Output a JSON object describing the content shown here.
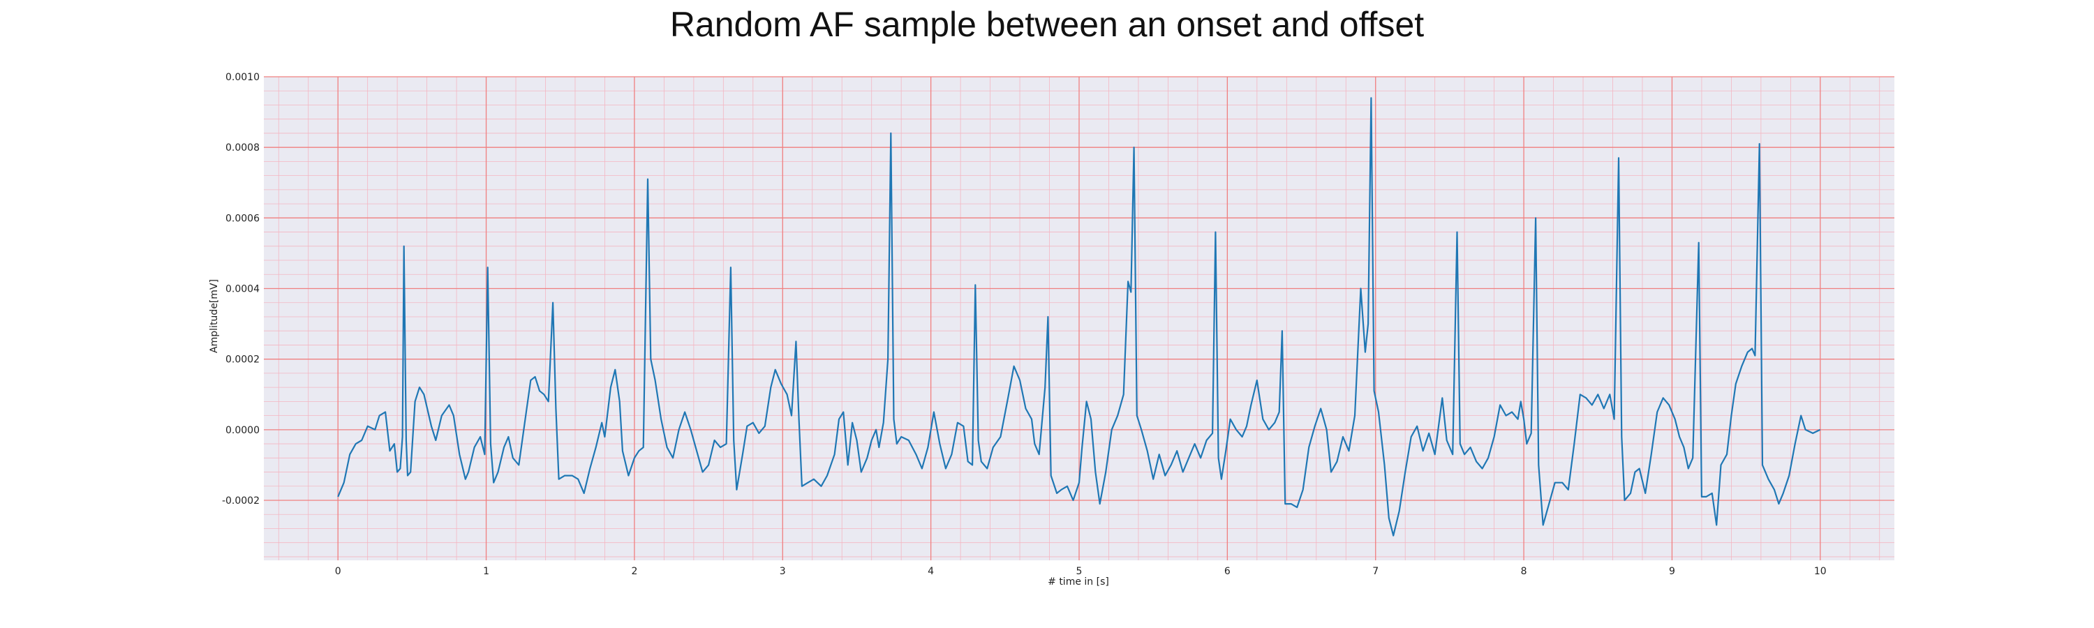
{
  "chart_data": {
    "type": "line",
    "title": "Random AF sample between an onset and offset",
    "xlabel": "# time in [s]",
    "ylabel": "Amplitude[mV]",
    "xlim": [
      -0.5,
      10.5
    ],
    "ylim": [
      -0.00037,
      0.001
    ],
    "x_ticks": [
      0,
      1,
      2,
      3,
      4,
      5,
      6,
      7,
      8,
      9,
      10
    ],
    "x_tick_labels": [
      "0",
      "1",
      "2",
      "3",
      "4",
      "5",
      "6",
      "7",
      "8",
      "9",
      "10"
    ],
    "y_ticks": [
      -0.0002,
      0.0,
      0.0002,
      0.0004,
      0.0006,
      0.0008,
      0.001
    ],
    "y_tick_labels": [
      "-0.0002",
      "0.0000",
      "0.0002",
      "0.0004",
      "0.0006",
      "0.0008",
      "0.0010"
    ],
    "grid": "major and minor",
    "legend": "none",
    "colors": {
      "plot_background": "#eaeaf2",
      "major_grid": "#f08080",
      "minor_grid": "#f4b6c2",
      "line": "#1f77b4"
    },
    "series": [
      {
        "values": [
          [
            0.0,
            -0.00019
          ],
          [
            0.04,
            -0.00015
          ],
          [
            0.08,
            -7e-05
          ],
          [
            0.12,
            -4e-05
          ],
          [
            0.16,
            -3e-05
          ],
          [
            0.2,
            1e-05
          ],
          [
            0.25,
            0.0
          ],
          [
            0.28,
            4e-05
          ],
          [
            0.32,
            5e-05
          ],
          [
            0.35,
            -6e-05
          ],
          [
            0.38,
            -4e-05
          ],
          [
            0.4,
            -0.00012
          ],
          [
            0.42,
            -0.00011
          ],
          [
            0.435,
            -2e-05
          ],
          [
            0.445,
            0.00052
          ],
          [
            0.46,
            -3e-05
          ],
          [
            0.47,
            -0.00013
          ],
          [
            0.49,
            -0.00012
          ],
          [
            0.52,
            8e-05
          ],
          [
            0.55,
            0.00012
          ],
          [
            0.58,
            0.0001
          ],
          [
            0.63,
            1e-05
          ],
          [
            0.66,
            -3e-05
          ],
          [
            0.7,
            4e-05
          ],
          [
            0.75,
            7e-05
          ],
          [
            0.78,
            4e-05
          ],
          [
            0.82,
            -7e-05
          ],
          [
            0.86,
            -0.00014
          ],
          [
            0.88,
            -0.00012
          ],
          [
            0.92,
            -5e-05
          ],
          [
            0.96,
            -2e-05
          ],
          [
            0.99,
            -7e-05
          ],
          [
            1.01,
            0.00046
          ],
          [
            1.03,
            -4e-05
          ],
          [
            1.05,
            -0.00015
          ],
          [
            1.08,
            -0.00012
          ],
          [
            1.12,
            -5e-05
          ],
          [
            1.15,
            -2e-05
          ],
          [
            1.18,
            -8e-05
          ],
          [
            1.22,
            -0.0001
          ],
          [
            1.27,
            5e-05
          ],
          [
            1.3,
            0.00014
          ],
          [
            1.33,
            0.00015
          ],
          [
            1.36,
            0.00011
          ],
          [
            1.39,
            0.0001
          ],
          [
            1.42,
            8e-05
          ],
          [
            1.45,
            0.00036
          ],
          [
            1.47,
            6e-05
          ],
          [
            1.49,
            -0.00014
          ],
          [
            1.53,
            -0.00013
          ],
          [
            1.58,
            -0.00013
          ],
          [
            1.62,
            -0.00014
          ],
          [
            1.66,
            -0.00018
          ],
          [
            1.7,
            -0.00011
          ],
          [
            1.74,
            -5e-05
          ],
          [
            1.78,
            2e-05
          ],
          [
            1.8,
            -2e-05
          ],
          [
            1.84,
            0.00012
          ],
          [
            1.87,
            0.00017
          ],
          [
            1.9,
            8e-05
          ],
          [
            1.92,
            -6e-05
          ],
          [
            1.96,
            -0.00013
          ],
          [
            2.0,
            -8e-05
          ],
          [
            2.03,
            -6e-05
          ],
          [
            2.06,
            -5e-05
          ],
          [
            2.09,
            0.00071
          ],
          [
            2.11,
            0.0002
          ],
          [
            2.14,
            0.00014
          ],
          [
            2.18,
            3e-05
          ],
          [
            2.22,
            -5e-05
          ],
          [
            2.26,
            -8e-05
          ],
          [
            2.3,
            0.0
          ],
          [
            2.34,
            5e-05
          ],
          [
            2.38,
            0.0
          ],
          [
            2.42,
            -6e-05
          ],
          [
            2.46,
            -0.00012
          ],
          [
            2.5,
            -0.0001
          ],
          [
            2.54,
            -3e-05
          ],
          [
            2.58,
            -5e-05
          ],
          [
            2.62,
            -4e-05
          ],
          [
            2.65,
            0.00046
          ],
          [
            2.67,
            -3e-05
          ],
          [
            2.69,
            -0.00017
          ],
          [
            2.73,
            -7e-05
          ],
          [
            2.76,
            1e-05
          ],
          [
            2.8,
            2e-05
          ],
          [
            2.84,
            -1e-05
          ],
          [
            2.88,
            1e-05
          ],
          [
            2.92,
            0.00012
          ],
          [
            2.95,
            0.00017
          ],
          [
            2.99,
            0.00013
          ],
          [
            3.03,
            0.0001
          ],
          [
            3.06,
            4e-05
          ],
          [
            3.09,
            0.00025
          ],
          [
            3.11,
            3e-05
          ],
          [
            3.13,
            -0.00016
          ],
          [
            3.17,
            -0.00015
          ],
          [
            3.21,
            -0.00014
          ],
          [
            3.26,
            -0.00016
          ],
          [
            3.3,
            -0.00013
          ],
          [
            3.35,
            -7e-05
          ],
          [
            3.38,
            3e-05
          ],
          [
            3.41,
            5e-05
          ],
          [
            3.44,
            -0.0001
          ],
          [
            3.47,
            2e-05
          ],
          [
            3.5,
            -3e-05
          ],
          [
            3.53,
            -0.00012
          ],
          [
            3.57,
            -8e-05
          ],
          [
            3.6,
            -3e-05
          ],
          [
            3.63,
            0.0
          ],
          [
            3.65,
            -5e-05
          ],
          [
            3.68,
            2e-05
          ],
          [
            3.71,
            0.0002
          ],
          [
            3.73,
            0.00084
          ],
          [
            3.75,
            3e-05
          ],
          [
            3.77,
            -4e-05
          ],
          [
            3.8,
            -2e-05
          ],
          [
            3.85,
            -3e-05
          ],
          [
            3.9,
            -7e-05
          ],
          [
            3.94,
            -0.00011
          ],
          [
            3.98,
            -5e-05
          ],
          [
            4.02,
            5e-05
          ],
          [
            4.06,
            -4e-05
          ],
          [
            4.1,
            -0.00011
          ],
          [
            4.14,
            -7e-05
          ],
          [
            4.18,
            2e-05
          ],
          [
            4.22,
            1e-05
          ],
          [
            4.25,
            -9e-05
          ],
          [
            4.28,
            -0.0001
          ],
          [
            4.3,
            0.00041
          ],
          [
            4.32,
            -3e-05
          ],
          [
            4.34,
            -9e-05
          ],
          [
            4.38,
            -0.00011
          ],
          [
            4.42,
            -5e-05
          ],
          [
            4.47,
            -2e-05
          ],
          [
            4.52,
            9e-05
          ],
          [
            4.56,
            0.00018
          ],
          [
            4.6,
            0.00014
          ],
          [
            4.64,
            6e-05
          ],
          [
            4.68,
            3e-05
          ],
          [
            4.7,
            -4e-05
          ],
          [
            4.73,
            -7e-05
          ],
          [
            4.77,
            0.00012
          ],
          [
            4.79,
            0.00032
          ],
          [
            4.81,
            -0.00013
          ],
          [
            4.85,
            -0.00018
          ],
          [
            4.88,
            -0.00017
          ],
          [
            4.92,
            -0.00016
          ],
          [
            4.96,
            -0.0002
          ],
          [
            5.0,
            -0.00015
          ],
          [
            5.02,
            -5e-05
          ],
          [
            5.05,
            8e-05
          ],
          [
            5.08,
            3e-05
          ],
          [
            5.11,
            -0.00012
          ],
          [
            5.14,
            -0.00021
          ],
          [
            5.18,
            -0.00012
          ],
          [
            5.22,
            0.0
          ],
          [
            5.26,
            4e-05
          ],
          [
            5.3,
            0.0001
          ],
          [
            5.33,
            0.00042
          ],
          [
            5.35,
            0.00039
          ],
          [
            5.37,
            0.0008
          ],
          [
            5.39,
            4e-05
          ],
          [
            5.42,
            0.0
          ],
          [
            5.46,
            -6e-05
          ],
          [
            5.5,
            -0.00014
          ],
          [
            5.54,
            -7e-05
          ],
          [
            5.58,
            -0.00013
          ],
          [
            5.62,
            -0.0001
          ],
          [
            5.66,
            -6e-05
          ],
          [
            5.7,
            -0.00012
          ],
          [
            5.74,
            -8e-05
          ],
          [
            5.78,
            -4e-05
          ],
          [
            5.82,
            -8e-05
          ],
          [
            5.86,
            -3e-05
          ],
          [
            5.9,
            -1e-05
          ],
          [
            5.92,
            0.00056
          ],
          [
            5.94,
            -8e-05
          ],
          [
            5.96,
            -0.00014
          ],
          [
            5.99,
            -6e-05
          ],
          [
            6.02,
            3e-05
          ],
          [
            6.06,
            0.0
          ],
          [
            6.1,
            -2e-05
          ],
          [
            6.13,
            1e-05
          ],
          [
            6.16,
            7e-05
          ],
          [
            6.2,
            0.00014
          ],
          [
            6.24,
            3e-05
          ],
          [
            6.28,
            0.0
          ],
          [
            6.32,
            2e-05
          ],
          [
            6.35,
            5e-05
          ],
          [
            6.37,
            0.00028
          ],
          [
            6.39,
            -0.00021
          ],
          [
            6.43,
            -0.00021
          ],
          [
            6.47,
            -0.00022
          ],
          [
            6.51,
            -0.00017
          ],
          [
            6.55,
            -5e-05
          ],
          [
            6.59,
            1e-05
          ],
          [
            6.63,
            6e-05
          ],
          [
            6.67,
            0.0
          ],
          [
            6.7,
            -0.00012
          ],
          [
            6.74,
            -9e-05
          ],
          [
            6.78,
            -2e-05
          ],
          [
            6.82,
            -6e-05
          ],
          [
            6.86,
            4e-05
          ],
          [
            6.9,
            0.0004
          ],
          [
            6.93,
            0.00022
          ],
          [
            6.95,
            0.0003
          ],
          [
            6.97,
            0.00094
          ],
          [
            6.99,
            0.00011
          ],
          [
            7.02,
            5e-05
          ],
          [
            7.06,
            -0.0001
          ],
          [
            7.09,
            -0.00025
          ],
          [
            7.12,
            -0.0003
          ],
          [
            7.16,
            -0.00023
          ],
          [
            7.2,
            -0.00012
          ],
          [
            7.24,
            -2e-05
          ],
          [
            7.28,
            1e-05
          ],
          [
            7.32,
            -6e-05
          ],
          [
            7.36,
            -1e-05
          ],
          [
            7.4,
            -7e-05
          ],
          [
            7.45,
            9e-05
          ],
          [
            7.48,
            -3e-05
          ],
          [
            7.52,
            -7e-05
          ],
          [
            7.55,
            0.00056
          ],
          [
            7.57,
            -4e-05
          ],
          [
            7.6,
            -7e-05
          ],
          [
            7.64,
            -5e-05
          ],
          [
            7.68,
            -9e-05
          ],
          [
            7.72,
            -0.00011
          ],
          [
            7.76,
            -8e-05
          ],
          [
            7.8,
            -2e-05
          ],
          [
            7.84,
            7e-05
          ],
          [
            7.88,
            4e-05
          ],
          [
            7.92,
            5e-05
          ],
          [
            7.96,
            3e-05
          ],
          [
            7.98,
            8e-05
          ],
          [
            8.0,
            3e-05
          ],
          [
            8.02,
            -4e-05
          ],
          [
            8.05,
            -1e-05
          ],
          [
            8.08,
            0.0006
          ],
          [
            8.1,
            -0.0001
          ],
          [
            8.13,
            -0.00027
          ],
          [
            8.17,
            -0.00021
          ],
          [
            8.21,
            -0.00015
          ],
          [
            8.26,
            -0.00015
          ],
          [
            8.3,
            -0.00017
          ],
          [
            8.34,
            -4e-05
          ],
          [
            8.38,
            0.0001
          ],
          [
            8.42,
            9e-05
          ],
          [
            8.46,
            7e-05
          ],
          [
            8.5,
            0.0001
          ],
          [
            8.54,
            6e-05
          ],
          [
            8.58,
            0.0001
          ],
          [
            8.61,
            3e-05
          ],
          [
            8.64,
            0.00077
          ],
          [
            8.66,
            -2e-05
          ],
          [
            8.68,
            -0.0002
          ],
          [
            8.72,
            -0.00018
          ],
          [
            8.75,
            -0.00012
          ],
          [
            8.78,
            -0.00011
          ],
          [
            8.82,
            -0.00018
          ],
          [
            8.86,
            -7e-05
          ],
          [
            8.9,
            5e-05
          ],
          [
            8.94,
            9e-05
          ],
          [
            8.98,
            7e-05
          ],
          [
            9.02,
            3e-05
          ],
          [
            9.05,
            -2e-05
          ],
          [
            9.08,
            -5e-05
          ],
          [
            9.11,
            -0.00011
          ],
          [
            9.14,
            -8e-05
          ],
          [
            9.18,
            0.00053
          ],
          [
            9.2,
            -0.00019
          ],
          [
            9.23,
            -0.00019
          ],
          [
            9.27,
            -0.00018
          ],
          [
            9.3,
            -0.00027
          ],
          [
            9.33,
            -0.0001
          ],
          [
            9.37,
            -7e-05
          ],
          [
            9.4,
            4e-05
          ],
          [
            9.43,
            0.00013
          ],
          [
            9.47,
            0.00018
          ],
          [
            9.51,
            0.00022
          ],
          [
            9.54,
            0.00023
          ],
          [
            9.56,
            0.00021
          ],
          [
            9.59,
            0.00081
          ],
          [
            9.61,
            -0.0001
          ],
          [
            9.65,
            -0.00014
          ],
          [
            9.69,
            -0.00017
          ],
          [
            9.72,
            -0.00021
          ],
          [
            9.75,
            -0.00018
          ],
          [
            9.79,
            -0.00013
          ],
          [
            9.83,
            -4e-05
          ],
          [
            9.87,
            4e-05
          ],
          [
            9.9,
            0.0
          ],
          [
            9.95,
            -1e-05
          ],
          [
            10.0,
            0.0
          ]
        ]
      }
    ]
  }
}
